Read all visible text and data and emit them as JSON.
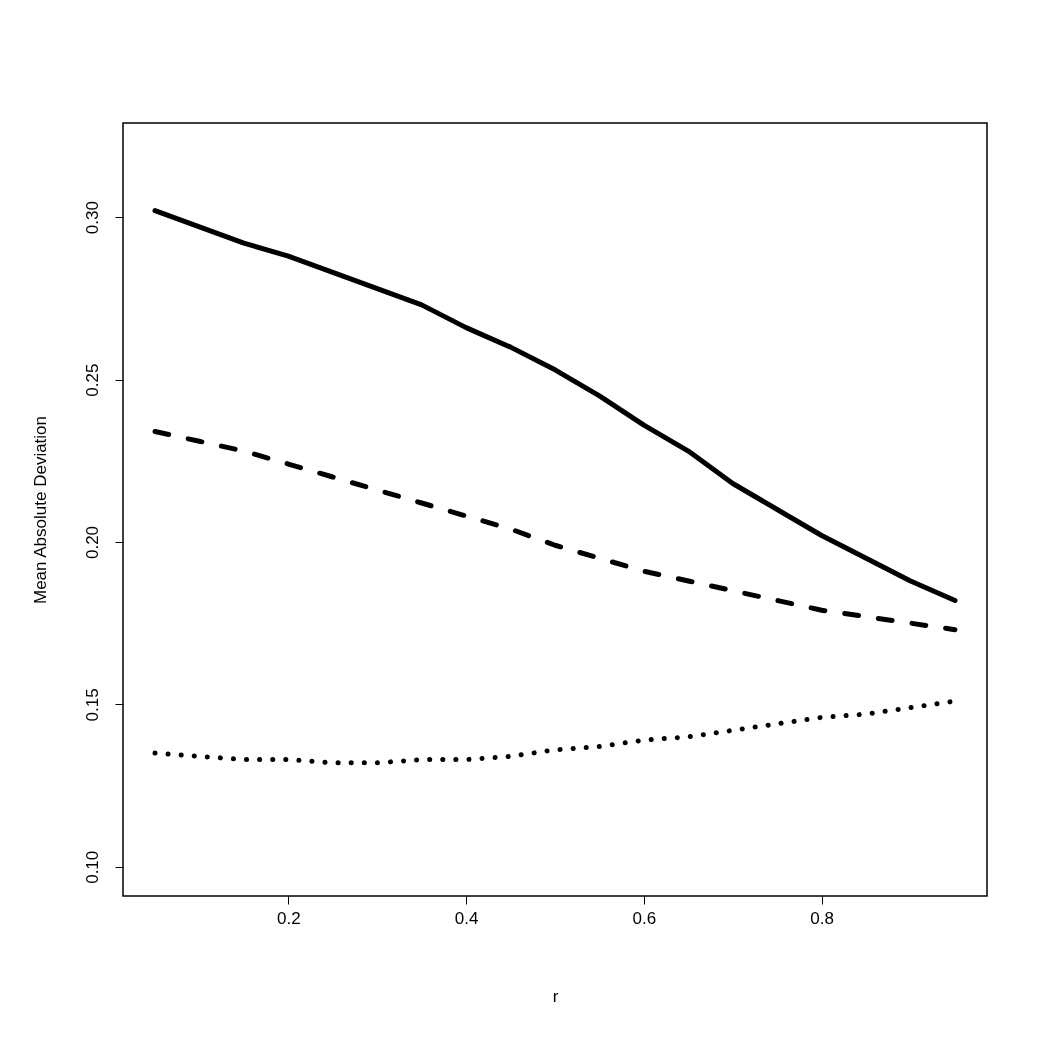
{
  "chart_data": {
    "type": "line",
    "xlabel": "r",
    "ylabel": "Mean Absolute Deviation",
    "x": [
      0.05,
      0.1,
      0.15,
      0.2,
      0.25,
      0.3,
      0.35,
      0.4,
      0.45,
      0.5,
      0.55,
      0.6,
      0.65,
      0.7,
      0.75,
      0.8,
      0.85,
      0.9,
      0.95
    ],
    "series": [
      {
        "color": "#000000",
        "line_style": "solid",
        "values": [
          0.302,
          0.297,
          0.292,
          0.288,
          0.283,
          0.278,
          0.273,
          0.266,
          0.26,
          0.253,
          0.245,
          0.236,
          0.228,
          0.218,
          0.21,
          0.202,
          0.195,
          0.188,
          0.182
        ]
      },
      {
        "color": "#000000",
        "line_style": "dashed",
        "values": [
          0.234,
          0.231,
          0.228,
          0.224,
          0.22,
          0.216,
          0.212,
          0.208,
          0.204,
          0.199,
          0.195,
          0.191,
          0.188,
          0.185,
          0.182,
          0.179,
          0.177,
          0.175,
          0.173
        ]
      },
      {
        "color": "#000000",
        "line_style": "dotted",
        "values": [
          0.135,
          0.134,
          0.133,
          0.133,
          0.132,
          0.132,
          0.133,
          0.133,
          0.134,
          0.136,
          0.137,
          0.139,
          0.14,
          0.142,
          0.144,
          0.146,
          0.147,
          0.149,
          0.151
        ]
      }
    ],
    "xlim": [
      0.014,
      0.986
    ],
    "xticks": [
      0.2,
      0.4,
      0.6,
      0.8
    ],
    "ylim": [
      0.091,
      0.329
    ],
    "yticks": [
      {
        "value": 0.1,
        "label": "0.10"
      },
      {
        "value": 0.15,
        "label": "0.15"
      },
      {
        "value": 0.2,
        "label": "0.20"
      },
      {
        "value": 0.25,
        "label": "0.25"
      },
      {
        "value": 0.3,
        "label": "0.30"
      }
    ],
    "grid": false
  }
}
